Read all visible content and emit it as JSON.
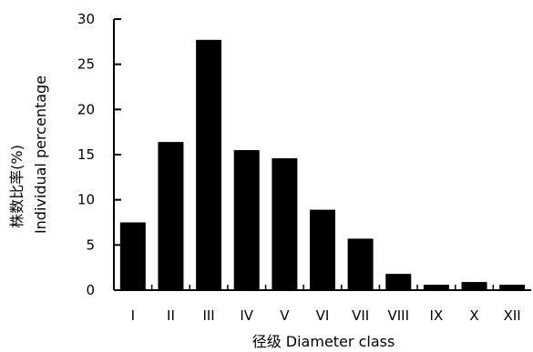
{
  "chart_data": {
    "type": "bar",
    "categories": [
      "I",
      "II",
      "III",
      "IV",
      "V",
      "VI",
      "VII",
      "VIII",
      "IX",
      "X",
      "XII"
    ],
    "values": [
      7.5,
      16.4,
      27.7,
      15.5,
      14.6,
      8.9,
      5.7,
      1.8,
      0.6,
      0.9,
      0.6
    ],
    "xlabel": "径级 Diameter class",
    "ylabel_cn": "株数比率(%)",
    "ylabel_en": "Individual percentage",
    "ylim": [
      0,
      30
    ],
    "yticks": [
      0,
      5,
      10,
      15,
      20,
      25,
      30
    ],
    "bar_color": "#000000",
    "grid": false
  }
}
